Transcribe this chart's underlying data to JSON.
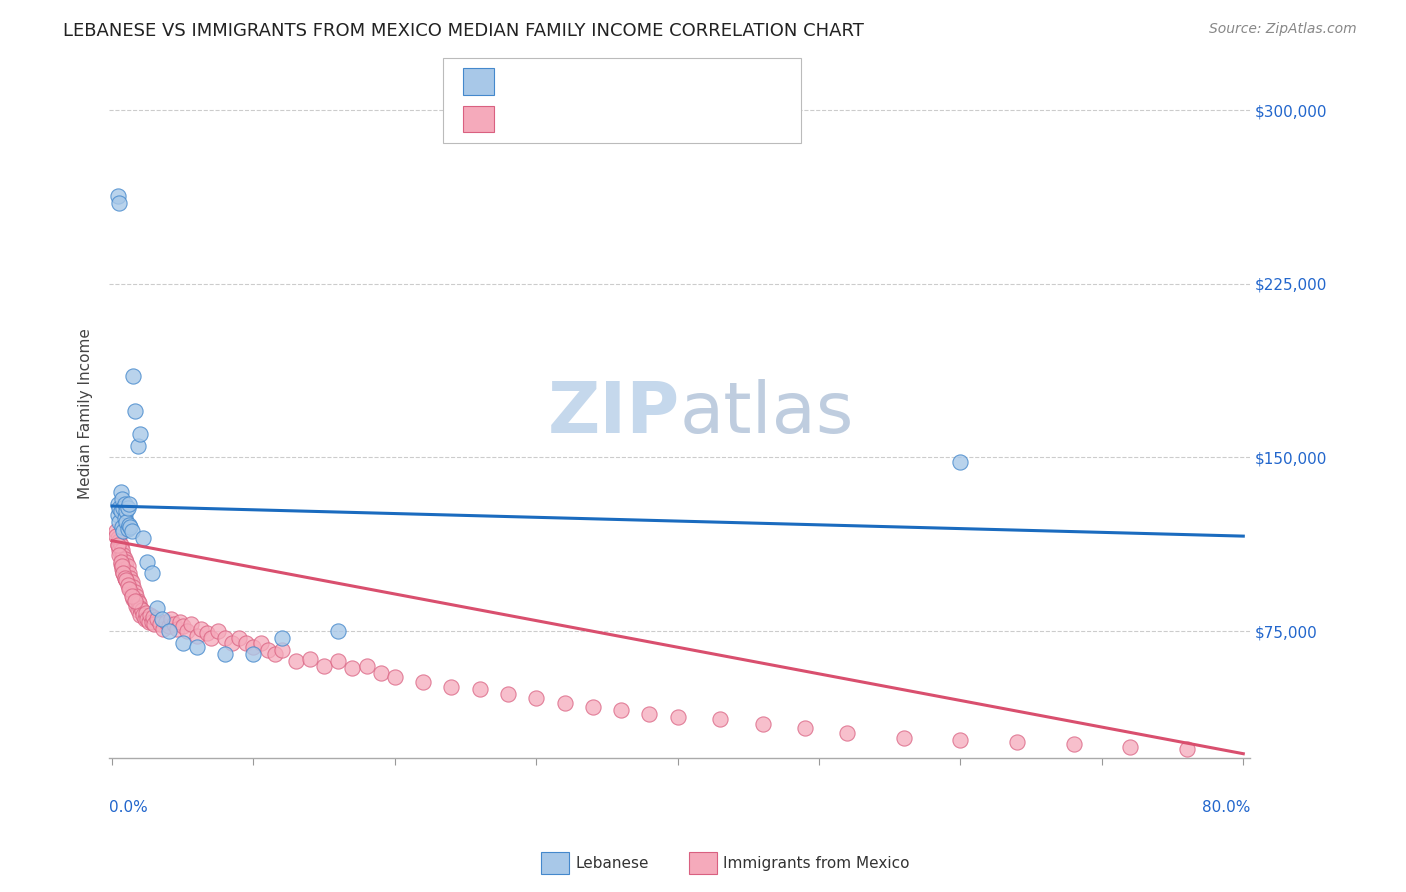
{
  "title": "LEBANESE VS IMMIGRANTS FROM MEXICO MEDIAN FAMILY INCOME CORRELATION CHART",
  "source": "Source: ZipAtlas.com",
  "ylabel": "Median Family Income",
  "y_ticks": [
    75000,
    150000,
    225000,
    300000
  ],
  "y_tick_labels": [
    "$75,000",
    "$150,000",
    "$225,000",
    "$300,000"
  ],
  "y_min": 20000,
  "y_max": 318000,
  "x_min": -0.002,
  "x_max": 0.805,
  "legend_label1": "Lebanese",
  "legend_label2": "Immigrants from Mexico",
  "blue_scatter_color": "#a8c8e8",
  "pink_scatter_color": "#f5aabb",
  "blue_line_color": "#1a6bbf",
  "pink_line_color": "#d94f6e",
  "blue_marker_edge": "#4488cc",
  "pink_marker_edge": "#d96080",
  "blue_scatter_x": [
    0.004,
    0.004,
    0.005,
    0.005,
    0.006,
    0.006,
    0.007,
    0.007,
    0.008,
    0.008,
    0.009,
    0.009,
    0.01,
    0.01,
    0.011,
    0.011,
    0.012,
    0.012,
    0.013,
    0.014,
    0.015,
    0.016,
    0.018,
    0.02,
    0.022,
    0.025,
    0.028,
    0.032,
    0.035,
    0.04,
    0.05,
    0.06,
    0.08,
    0.1,
    0.12,
    0.16,
    0.6,
    0.004,
    0.005
  ],
  "blue_scatter_y": [
    130000,
    125000,
    128000,
    122000,
    135000,
    127000,
    132000,
    120000,
    128000,
    118000,
    130000,
    124000,
    127000,
    122000,
    128000,
    119000,
    130000,
    121000,
    120000,
    118000,
    185000,
    170000,
    155000,
    160000,
    115000,
    105000,
    100000,
    85000,
    80000,
    75000,
    70000,
    68000,
    65000,
    65000,
    72000,
    75000,
    148000,
    263000,
    260000
  ],
  "pink_scatter_x": [
    0.003,
    0.004,
    0.004,
    0.005,
    0.005,
    0.006,
    0.006,
    0.006,
    0.007,
    0.007,
    0.007,
    0.008,
    0.008,
    0.008,
    0.009,
    0.009,
    0.009,
    0.01,
    0.01,
    0.01,
    0.011,
    0.011,
    0.012,
    0.012,
    0.013,
    0.013,
    0.014,
    0.014,
    0.015,
    0.015,
    0.016,
    0.016,
    0.017,
    0.017,
    0.018,
    0.018,
    0.019,
    0.02,
    0.02,
    0.021,
    0.022,
    0.023,
    0.024,
    0.025,
    0.026,
    0.027,
    0.028,
    0.029,
    0.03,
    0.032,
    0.034,
    0.036,
    0.038,
    0.04,
    0.042,
    0.044,
    0.046,
    0.048,
    0.05,
    0.053,
    0.056,
    0.06,
    0.063,
    0.067,
    0.07,
    0.075,
    0.08,
    0.085,
    0.09,
    0.095,
    0.1,
    0.105,
    0.11,
    0.115,
    0.12,
    0.13,
    0.14,
    0.15,
    0.16,
    0.17,
    0.18,
    0.19,
    0.2,
    0.22,
    0.24,
    0.26,
    0.28,
    0.3,
    0.32,
    0.34,
    0.36,
    0.38,
    0.4,
    0.43,
    0.46,
    0.49,
    0.52,
    0.56,
    0.6,
    0.64,
    0.68,
    0.72,
    0.76,
    0.003,
    0.004,
    0.005,
    0.006,
    0.007,
    0.008,
    0.009,
    0.01,
    0.011,
    0.012,
    0.014,
    0.016
  ],
  "pink_scatter_y": [
    118000,
    115000,
    112000,
    114000,
    110000,
    112000,
    108000,
    104000,
    110000,
    106000,
    102000,
    108000,
    105000,
    100000,
    106000,
    103000,
    98000,
    105000,
    101000,
    97000,
    103000,
    98000,
    100000,
    95000,
    98000,
    93000,
    96000,
    91000,
    94000,
    89000,
    92000,
    88000,
    90000,
    86000,
    88000,
    84000,
    87000,
    85000,
    82000,
    84000,
    82000,
    80000,
    83000,
    80000,
    79000,
    82000,
    79000,
    81000,
    78000,
    80000,
    78000,
    76000,
    79000,
    77000,
    80000,
    78000,
    76000,
    79000,
    77000,
    75000,
    78000,
    73000,
    76000,
    74000,
    72000,
    75000,
    72000,
    70000,
    72000,
    70000,
    68000,
    70000,
    67000,
    65000,
    67000,
    62000,
    63000,
    60000,
    62000,
    59000,
    60000,
    57000,
    55000,
    53000,
    51000,
    50000,
    48000,
    46000,
    44000,
    42000,
    41000,
    39000,
    38000,
    37000,
    35000,
    33000,
    31000,
    29000,
    28000,
    27000,
    26000,
    25000,
    24000,
    116000,
    112000,
    108000,
    105000,
    103000,
    100000,
    98000,
    97000,
    95000,
    93000,
    90000,
    88000
  ],
  "blue_line_x0": 0.0,
  "blue_line_x1": 0.8,
  "blue_line_y0": 129000,
  "blue_line_y1": 116000,
  "pink_line_x0": 0.0,
  "pink_line_x1": 0.8,
  "pink_line_y0": 114000,
  "pink_line_y1": 22000,
  "title_fontsize": 13,
  "axis_label_fontsize": 11,
  "tick_fontsize": 11,
  "source_fontsize": 10,
  "watermark_fontsize": 52,
  "background_color": "#ffffff",
  "grid_color": "#cccccc",
  "right_tick_color": "#2266cc"
}
